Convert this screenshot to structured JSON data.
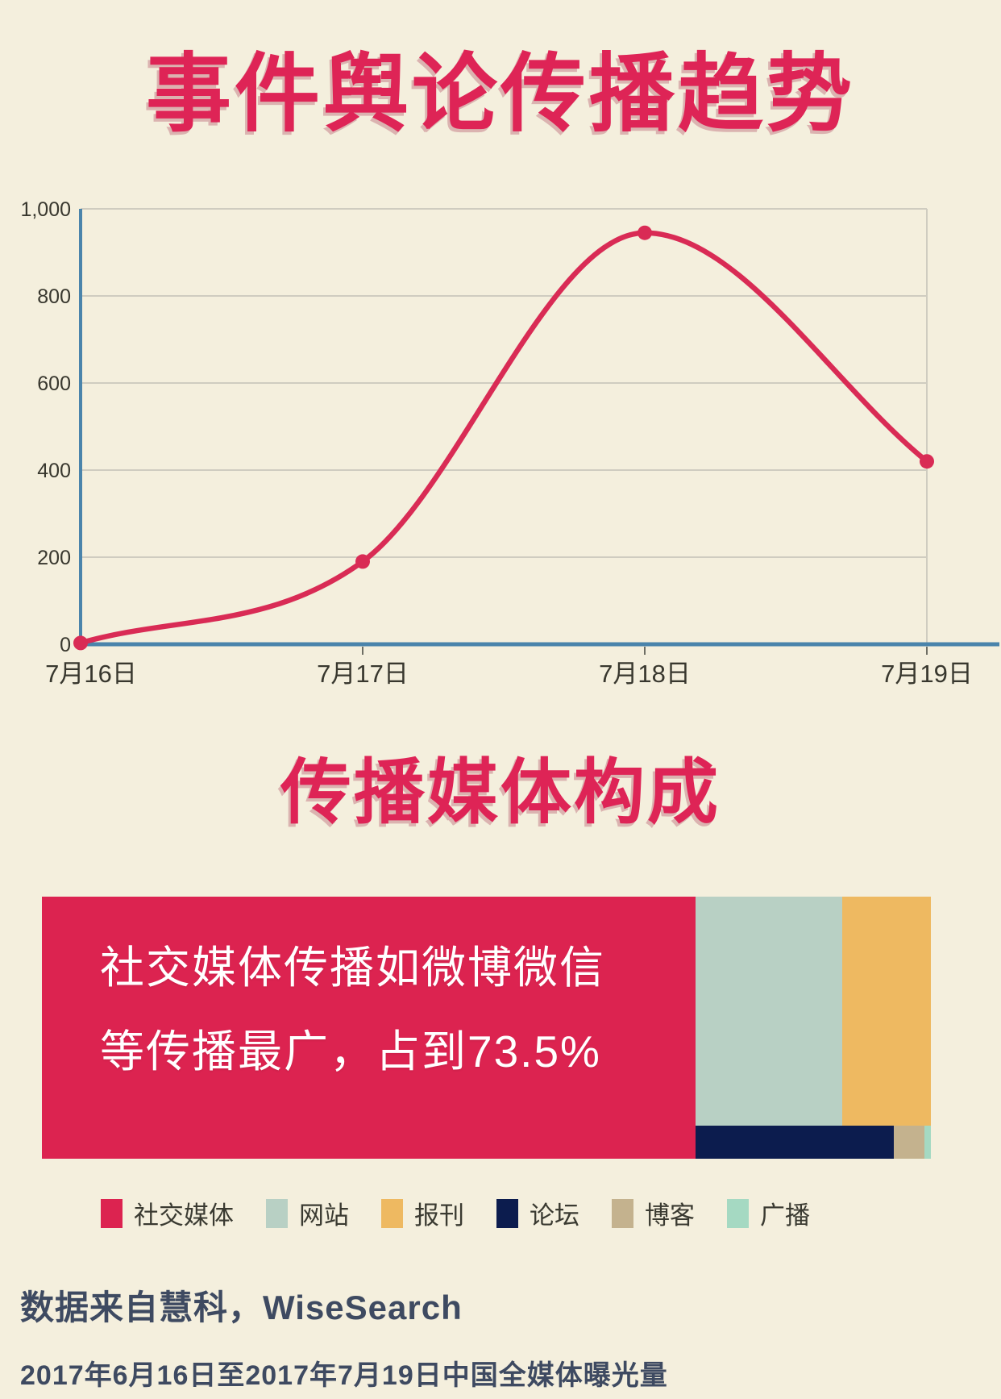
{
  "page": {
    "background": "#f4efdd",
    "accent_crimson": "#de2456",
    "axis_blue": "#4a84ab",
    "grid_color": "#cfccc0",
    "tick_text_color": "#38372e",
    "footer_color": "#3e4a61"
  },
  "section1": {
    "title": "事件舆论传播趋势"
  },
  "section2": {
    "title": "传播媒体构成"
  },
  "chart_data": [
    {
      "type": "line",
      "title": "事件舆论传播趋势",
      "categories": [
        "7月16日",
        "7月17日",
        "7月18日",
        "7月19日"
      ],
      "values": [
        3,
        190,
        945,
        420
      ],
      "ylim": [
        0,
        1000
      ],
      "yticks": [
        0,
        200,
        400,
        600,
        800,
        1000
      ],
      "ytick_labels": [
        "0",
        "200",
        "400",
        "600",
        "800",
        "1,000"
      ],
      "grid": "horizontal",
      "legend": "none",
      "line_color": "#d92b55",
      "point_color": "#d92b55",
      "axis_color": "#4a84ab"
    },
    {
      "type": "treemap",
      "title": "传播媒体构成",
      "annotation_line1": "社交媒体传播如微博微信",
      "annotation_line2": "等传播最广，占到73.5%",
      "labeled_share": {
        "label": "社交媒体",
        "share_pct": 73.5
      },
      "blocks": [
        {
          "key": "social-media",
          "label": "社交媒体",
          "color": "#dc2350",
          "share_pct": 73.5,
          "x": 0,
          "y": 0,
          "w": 73.5,
          "h": 100
        },
        {
          "key": "website",
          "label": "网站",
          "color": "#b8d0c4",
          "share_pct": 14.4,
          "x": 73.5,
          "y": 0,
          "w": 16.5,
          "h": 87.5
        },
        {
          "key": "press",
          "label": "报刊",
          "color": "#eeb961",
          "share_pct": 8.7,
          "x": 90.0,
          "y": 0,
          "w": 10.0,
          "h": 87.5
        },
        {
          "key": "forum",
          "label": "论坛",
          "color": "#0c1c4e",
          "share_pct": 2.8,
          "x": 73.5,
          "y": 87.5,
          "w": 22.3,
          "h": 12.5
        },
        {
          "key": "blog",
          "label": "博客",
          "color": "#c4b28e",
          "share_pct": 0.5,
          "x": 95.8,
          "y": 87.5,
          "w": 3.5,
          "h": 12.5
        },
        {
          "key": "broadcast",
          "label": "广播",
          "color": "#a5d9c2",
          "share_pct": 0.1,
          "x": 99.3,
          "y": 87.5,
          "w": 0.7,
          "h": 12.5
        }
      ]
    }
  ],
  "legend": {
    "items": [
      {
        "key": "social-media",
        "label": "社交媒体",
        "color": "#dc2350"
      },
      {
        "key": "website",
        "label": "网站",
        "color": "#b8d0c4"
      },
      {
        "key": "press",
        "label": "报刊",
        "color": "#eeb961"
      },
      {
        "key": "forum",
        "label": "论坛",
        "color": "#0c1c4e"
      },
      {
        "key": "blog",
        "label": "博客",
        "color": "#c4b28e"
      },
      {
        "key": "broadcast",
        "label": "广播",
        "color": "#a5d9c2"
      }
    ]
  },
  "footer": {
    "line1": "数据来自慧科，WiseSearch",
    "line2": "2017年6月16日至2017年7月19日中国全媒体曝光量"
  }
}
